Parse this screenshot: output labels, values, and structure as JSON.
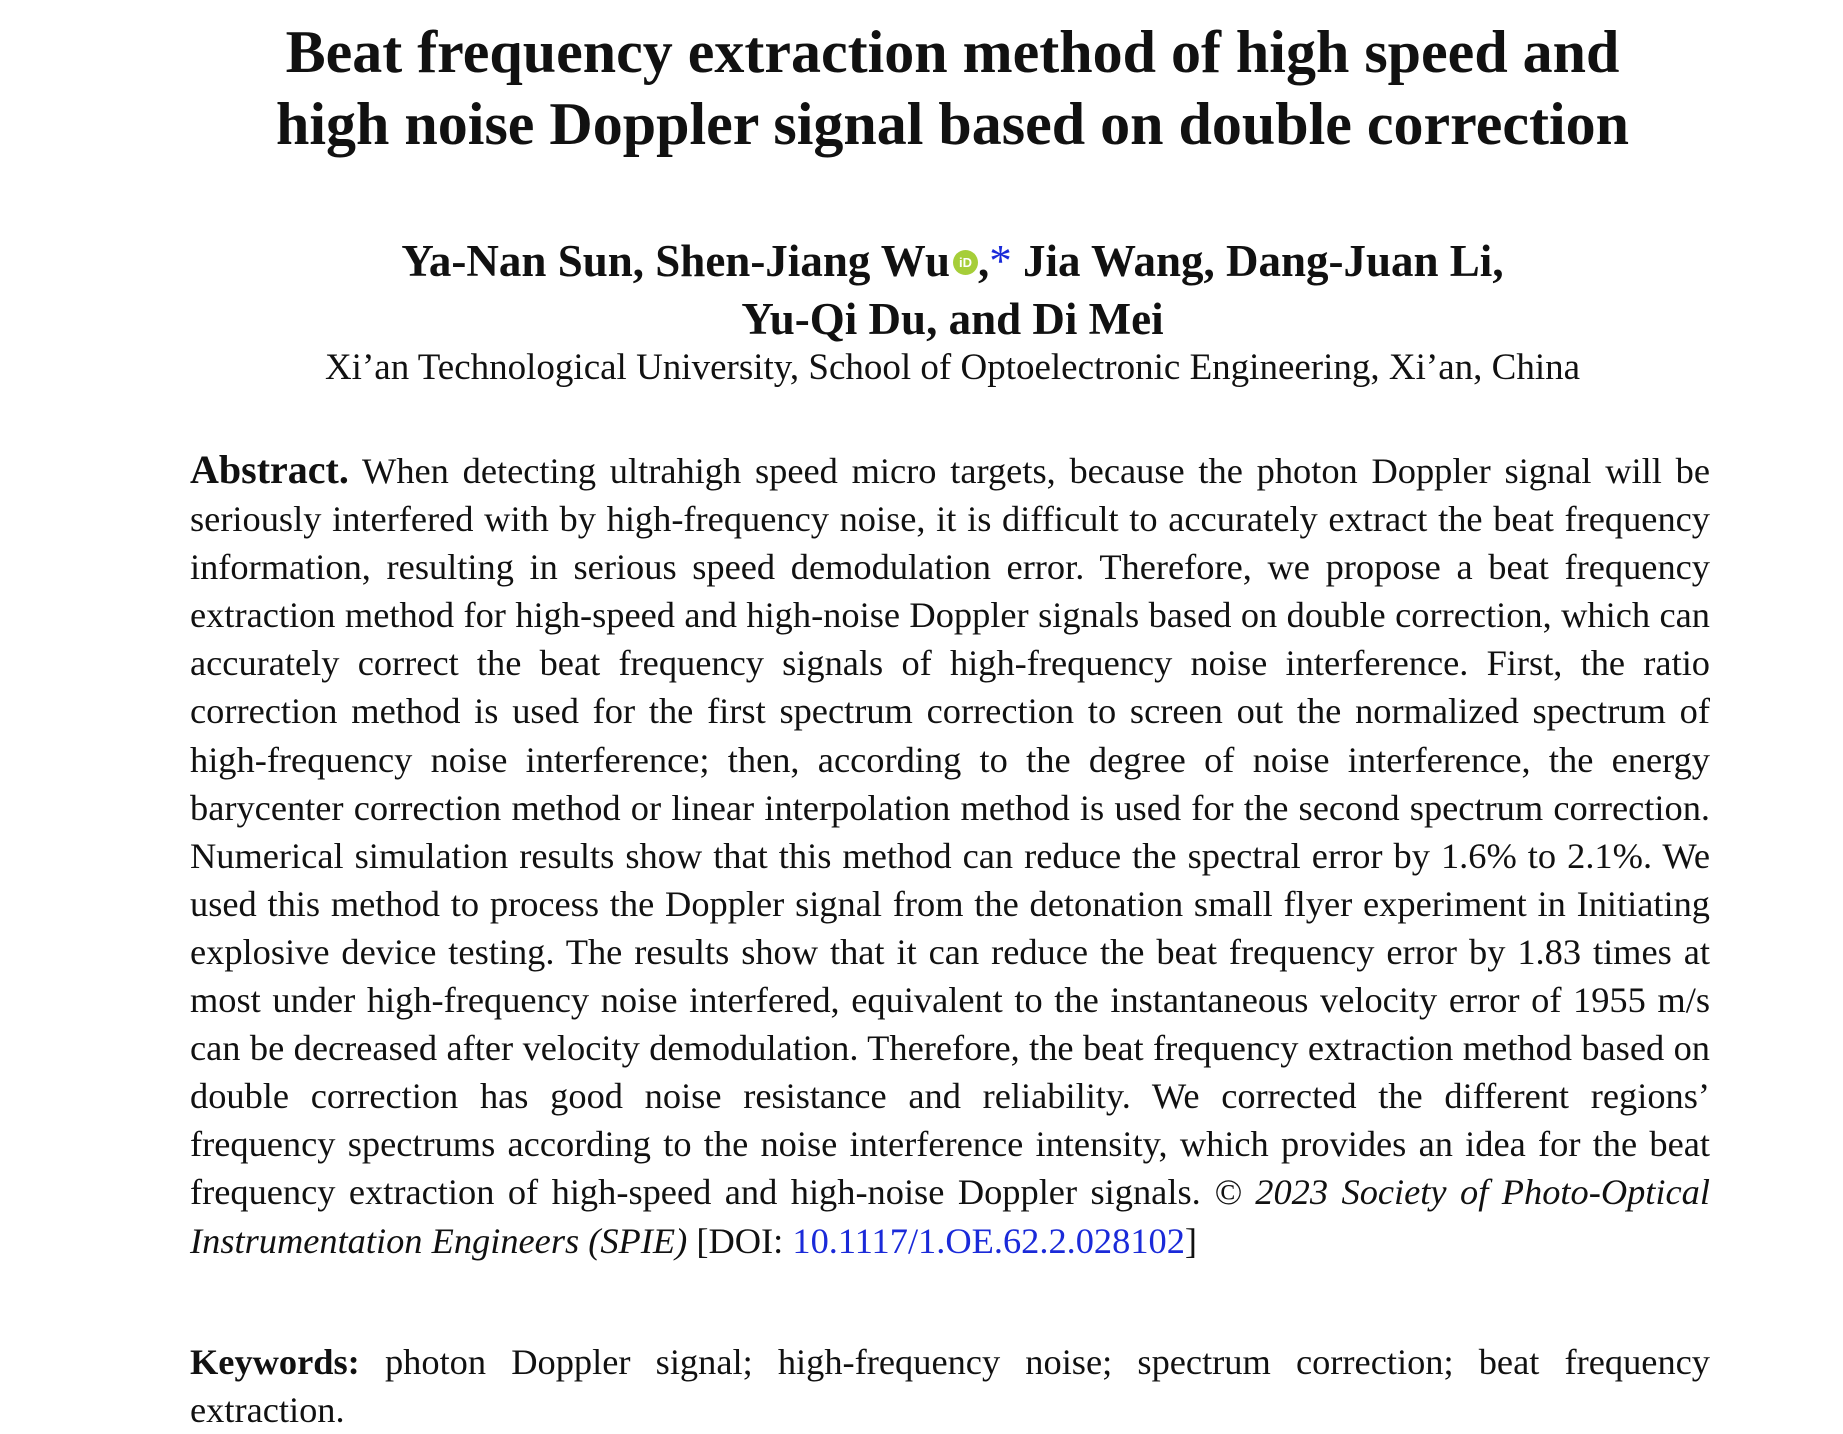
{
  "paper": {
    "title_line1": "Beat frequency extraction method of high speed and",
    "title_line2": "high noise Doppler signal based on double correction",
    "authors_line1_part1": "Ya-Nan Sun, Shen-Jiang Wu",
    "orcid_badge": "iD",
    "authors_line1_comma": ",",
    "corresponding_mark": "*",
    "authors_line1_part2": " Jia Wang, Dang-Juan Li,",
    "authors_line2": "Yu-Qi Du, and Di Mei",
    "affiliation": "Xi’an Technological University, School of Optoelectronic Engineering, Xi’an, China",
    "abstract_label": "Abstract.",
    "abstract_text": "When detecting ultrahigh speed micro targets, because the photon Doppler signal will be seriously interfered with by high-frequency noise, it is difficult to accurately extract the beat frequency information, resulting in serious speed demodulation error. Therefore, we pro­pose a beat frequency extraction method for high-speed and high-noise Doppler signals based on double correction, which can accurately correct the beat frequency signals of high-frequency noise interference. First, the ratio correction method is used for the first spectrum correction to screen out the normalized spectrum of high-frequency noise interference; then, according to the degree of noise interference, the energy barycenter correction method or linear interpo­lation method is used for the second spectrum correction. Numerical simulation results show that this method can reduce the spectral error by 1.6% to 2.1%. We used this method to process the Doppler signal from the detonation small flyer experiment in Initiating explosive device testing. The results show that it can reduce the beat frequency error by 1.83 times at most under high-frequency noise interfered, equivalent to the instantaneous velocity error of 1955 m/s can be decreased after velocity demodulation. Therefore, the beat frequency extraction method based on double correction has good noise resistance and reliability. We corrected the different regions’ frequency spectrums according to the noise interference intensity, which provides an idea for the beat frequency extraction of high-speed and high-noise Doppler signals.",
    "copyright": "© 2023 Society of Photo-Optical Instrumentation Engineers (SPIE)",
    "doi_prefix": "[DOI: ",
    "doi": "10.1117/1.OE.62.2.028102",
    "doi_suffix": "]",
    "keywords_label": "Keywords:",
    "keywords_text": "photon Doppler signal; high-frequency noise; spectrum correction; beat frequency extraction."
  },
  "colors": {
    "link": "#1a2ad9",
    "orcid": "#a6ce39"
  }
}
